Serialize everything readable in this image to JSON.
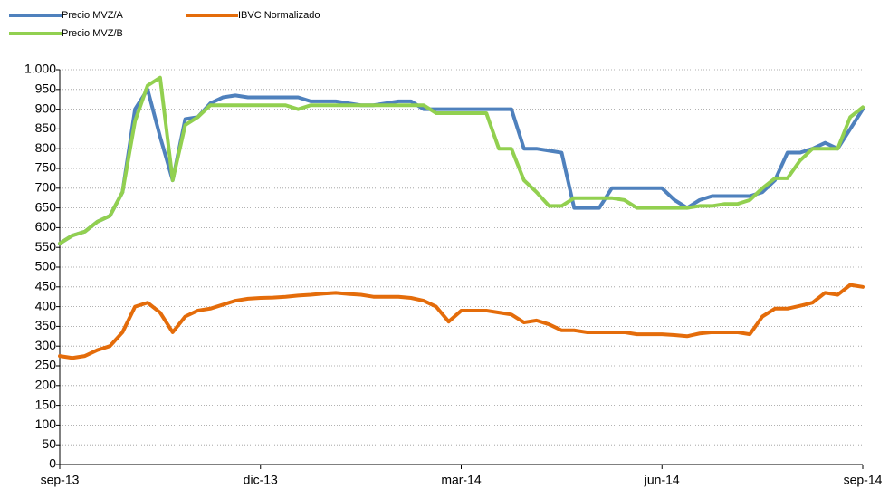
{
  "chart_data": {
    "type": "line",
    "categories": [
      "sep-13",
      null,
      null,
      null,
      null,
      null,
      null,
      null,
      null,
      null,
      null,
      null,
      null,
      null,
      null,
      null,
      "dic-13",
      null,
      null,
      null,
      null,
      null,
      null,
      null,
      null,
      null,
      null,
      null,
      null,
      null,
      null,
      null,
      "mar-14",
      null,
      null,
      null,
      null,
      null,
      null,
      null,
      null,
      null,
      null,
      null,
      null,
      null,
      null,
      null,
      "jun-14",
      null,
      null,
      null,
      null,
      null,
      null,
      null,
      null,
      null,
      null,
      null,
      null,
      null,
      null,
      null,
      "sep-14"
    ],
    "series": [
      {
        "name": "Precio MVZ/A",
        "color": "#4f81bd",
        "values": [
          560,
          580,
          590,
          615,
          630,
          690,
          900,
          950,
          830,
          720,
          875,
          880,
          915,
          930,
          935,
          930,
          930,
          930,
          930,
          930,
          920,
          920,
          920,
          915,
          910,
          910,
          915,
          920,
          920,
          900,
          900,
          900,
          900,
          900,
          900,
          900,
          900,
          800,
          800,
          795,
          790,
          650,
          650,
          650,
          700,
          700,
          700,
          700,
          700,
          670,
          650,
          670,
          680,
          680,
          680,
          680,
          690,
          720,
          790,
          790,
          800,
          815,
          800,
          850,
          900
        ]
      },
      {
        "name": "IBVC Normalizado",
        "color": "#e46c0a",
        "values": [
          275,
          270,
          275,
          290,
          300,
          335,
          400,
          410,
          385,
          335,
          375,
          390,
          395,
          405,
          415,
          420,
          422,
          423,
          425,
          428,
          430,
          433,
          435,
          432,
          430,
          425,
          425,
          425,
          422,
          415,
          400,
          362,
          390,
          390,
          390,
          385,
          380,
          360,
          365,
          355,
          340,
          340,
          335,
          335,
          335,
          335,
          330,
          330,
          330,
          328,
          325,
          332,
          335,
          335,
          335,
          330,
          375,
          395,
          395,
          402,
          410,
          435,
          430,
          455,
          450
        ]
      },
      {
        "name": "Precio MVZ/B",
        "color": "#92d050",
        "values": [
          560,
          580,
          590,
          615,
          630,
          690,
          870,
          960,
          980,
          720,
          860,
          880,
          910,
          910,
          910,
          910,
          910,
          910,
          910,
          900,
          910,
          910,
          910,
          910,
          910,
          910,
          910,
          910,
          910,
          910,
          890,
          890,
          890,
          890,
          890,
          800,
          800,
          720,
          690,
          655,
          655,
          675,
          675,
          675,
          675,
          670,
          650,
          650,
          650,
          650,
          650,
          655,
          655,
          660,
          660,
          670,
          700,
          725,
          725,
          770,
          800,
          800,
          800,
          880,
          905
        ]
      }
    ],
    "ylim": [
      0,
      1000
    ],
    "yticks": [
      0,
      50,
      100,
      150,
      200,
      250,
      300,
      350,
      400,
      450,
      500,
      550,
      600,
      650,
      700,
      750,
      800,
      850,
      900,
      950,
      {
        "value": 1000,
        "label": "1.000"
      }
    ],
    "grid": true,
    "legend": "top"
  }
}
